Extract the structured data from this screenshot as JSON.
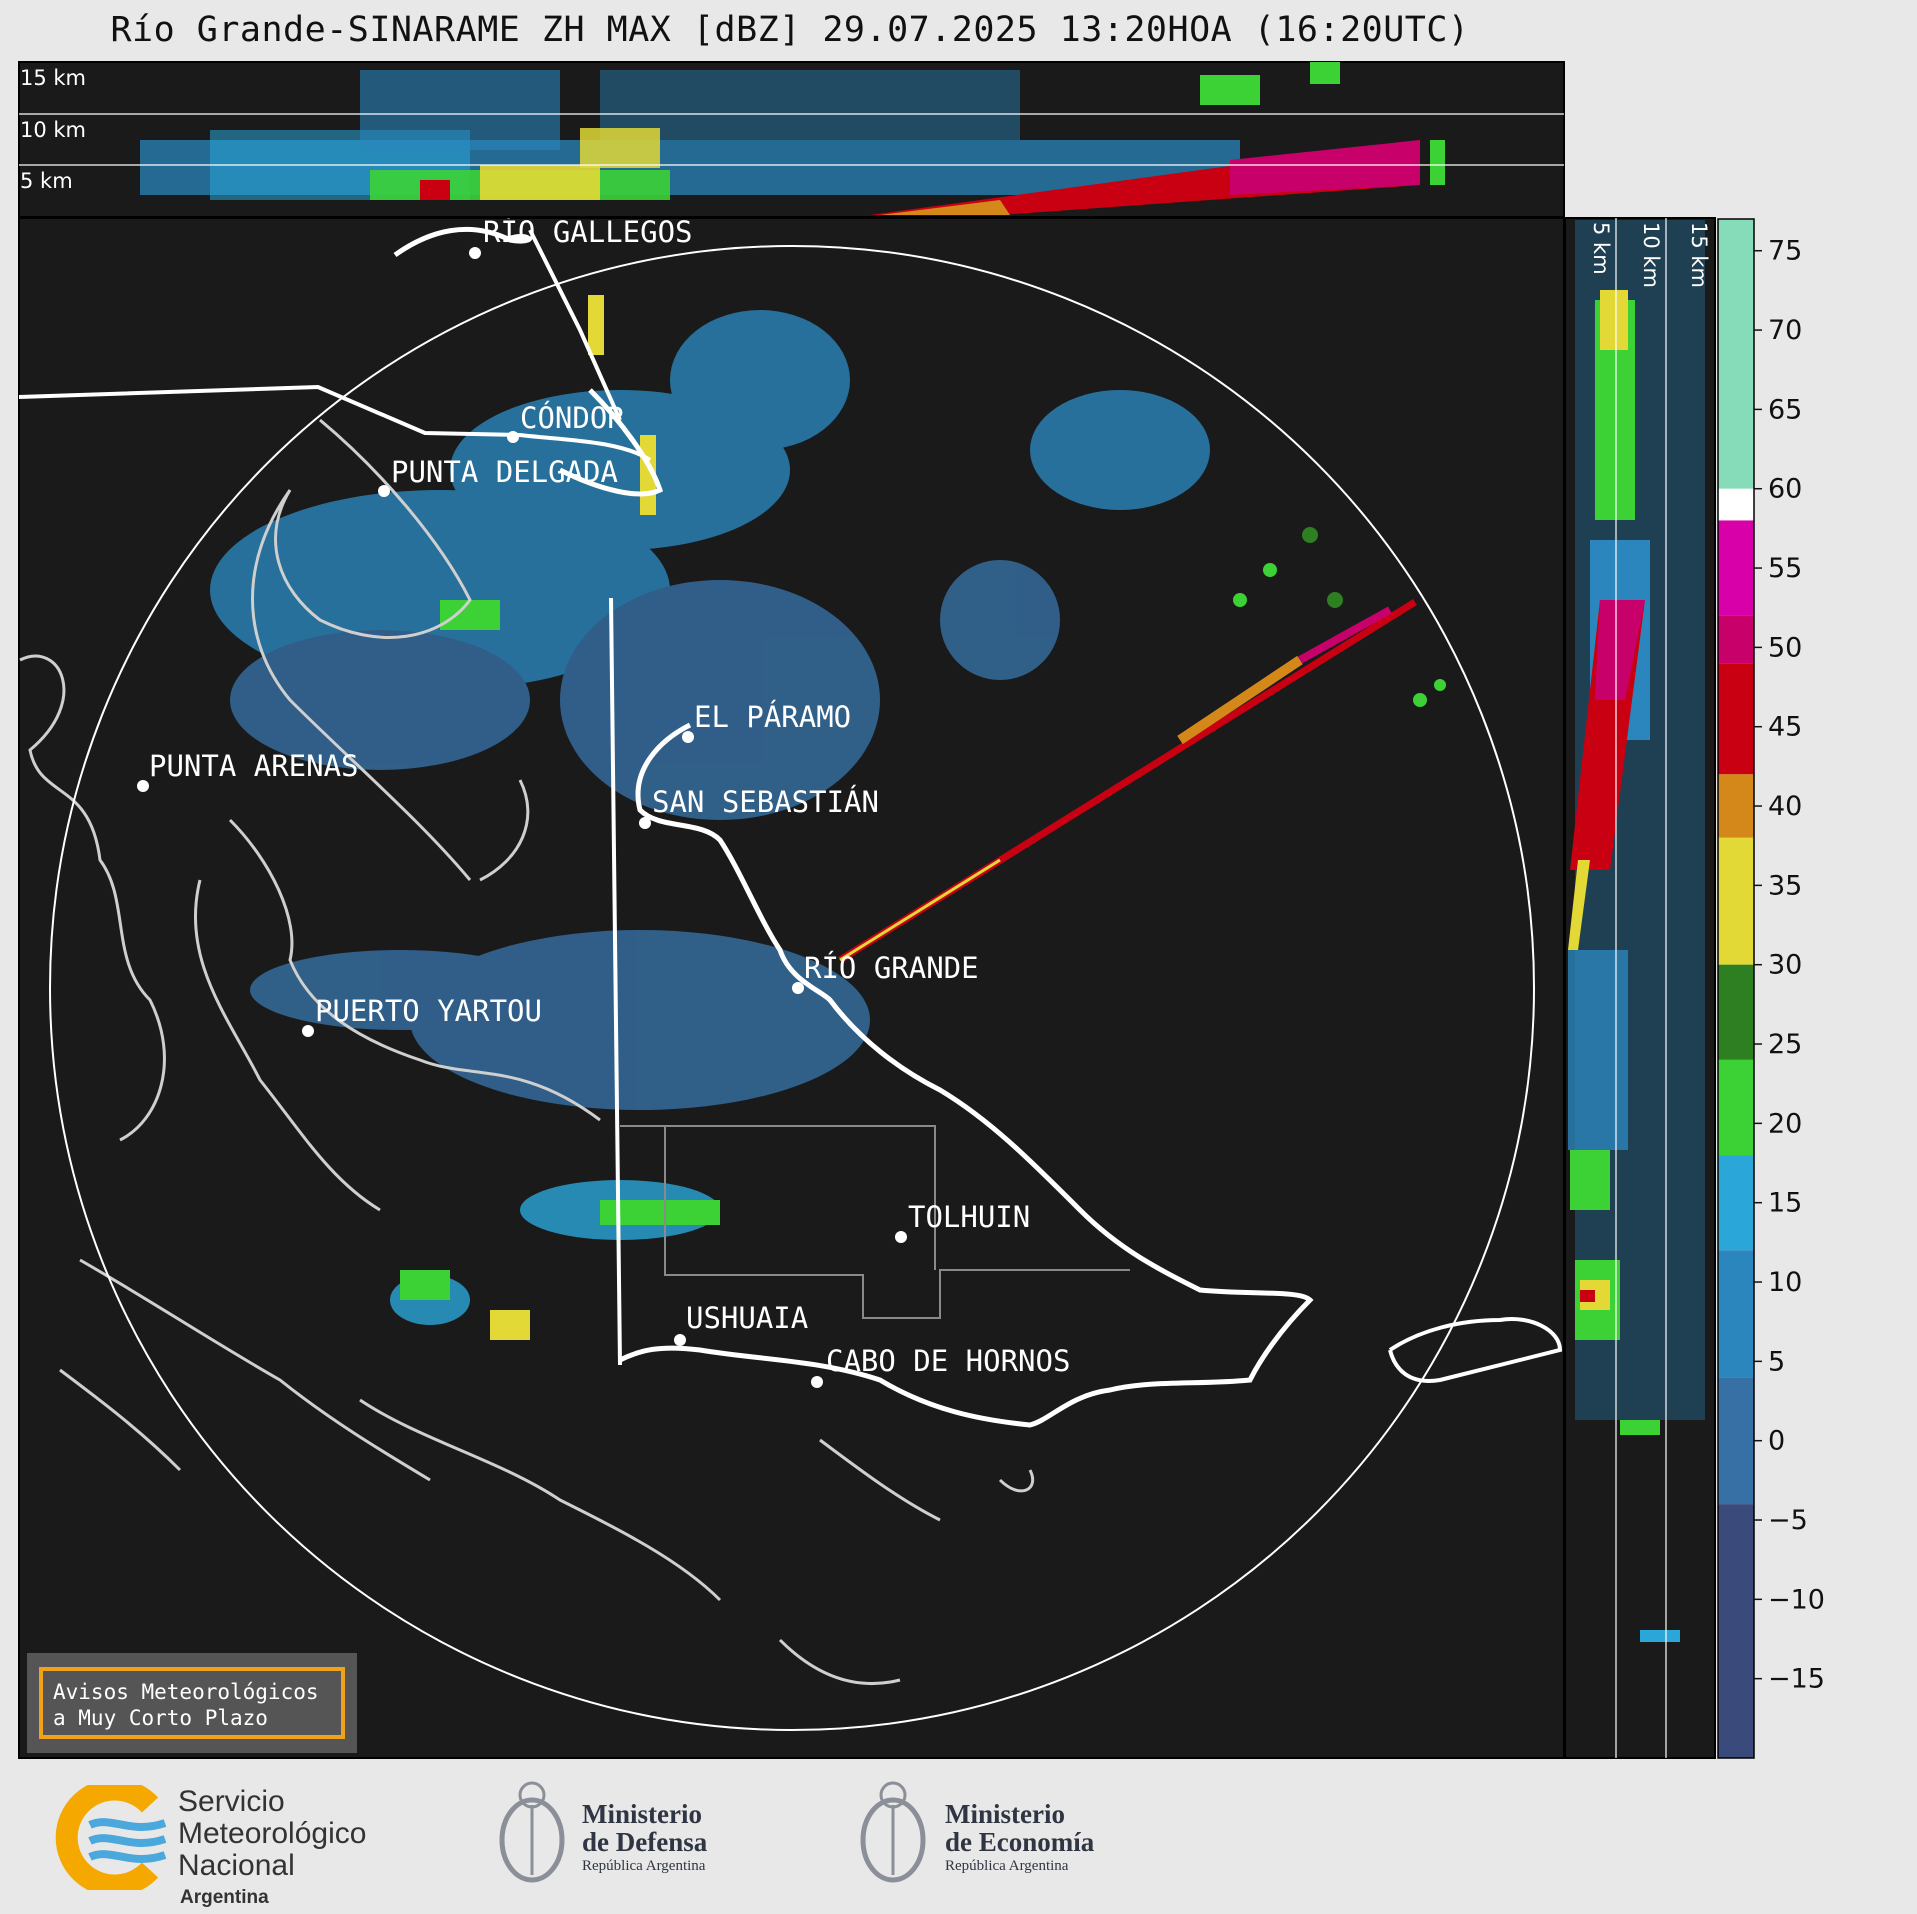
{
  "title": "Río Grande-SINARAME ZH MAX [dBZ] 29.07.2025 13:20HOA (16:20UTC)",
  "top_panel": {
    "height_labels": [
      "15 km",
      "10 km",
      "5 km"
    ]
  },
  "side_panel": {
    "height_labels": [
      "5 km",
      "10 km",
      "15 km"
    ]
  },
  "colorbar": {
    "unit": "dBZ",
    "ticks": [
      "75",
      "70",
      "65",
      "60",
      "55",
      "50",
      "45",
      "40",
      "35",
      "30",
      "25",
      "20",
      "15",
      "10",
      "5",
      "0",
      "−5",
      "−10",
      "−15"
    ],
    "bands": [
      {
        "from": 60,
        "to": 77,
        "color": "#86dcb8"
      },
      {
        "from": 58,
        "to": 60,
        "color": "#ffffff"
      },
      {
        "from": 52,
        "to": 58,
        "color": "#d800a8"
      },
      {
        "from": 49,
        "to": 52,
        "color": "#c8006a"
      },
      {
        "from": 42,
        "to": 49,
        "color": "#c80012"
      },
      {
        "from": 38,
        "to": 42,
        "color": "#d4881a"
      },
      {
        "from": 30,
        "to": 38,
        "color": "#e2d836"
      },
      {
        "from": 24,
        "to": 30,
        "color": "#2e7e22"
      },
      {
        "from": 18,
        "to": 24,
        "color": "#3cd236"
      },
      {
        "from": 12,
        "to": 18,
        "color": "#2aa6d8"
      },
      {
        "from": 4,
        "to": 12,
        "color": "#2a86bc"
      },
      {
        "from": -4,
        "to": 4,
        "color": "#3670a4"
      },
      {
        "from": -20,
        "to": -4,
        "color": "#3a4a7a"
      }
    ]
  },
  "places": [
    {
      "name": "RÍO GALLEGOS"
    },
    {
      "name": "CÓNDOR"
    },
    {
      "name": "PUNTA DELGADA"
    },
    {
      "name": "EL PÁRAMO"
    },
    {
      "name": "PUNTA ARENAS"
    },
    {
      "name": "SAN SEBASTIÁN"
    },
    {
      "name": "RÍO GRANDE"
    },
    {
      "name": "PUERTO YARTOU"
    },
    {
      "name": "TOLHUIN"
    },
    {
      "name": "USHUAIA"
    },
    {
      "name": "CABO DE HORNOS"
    }
  ],
  "notice": {
    "line1": "Avisos Meteorológicos",
    "line2": "a Muy Corto Plazo"
  },
  "footer": {
    "smn": {
      "line1": "Servicio",
      "line2": "Meteorológico",
      "line3": "Nacional",
      "line4": "Argentina"
    },
    "defensa": {
      "line1": "Ministerio",
      "line2": "de Defensa",
      "line3": "República Argentina"
    },
    "economia": {
      "line1": "Ministerio",
      "line2": "de Economía",
      "line3": "República Argentina"
    }
  },
  "colors": {
    "map_bg": "#1a1a1a",
    "page_bg": "#e8e8e8",
    "accent_box": "#f0a21a"
  }
}
